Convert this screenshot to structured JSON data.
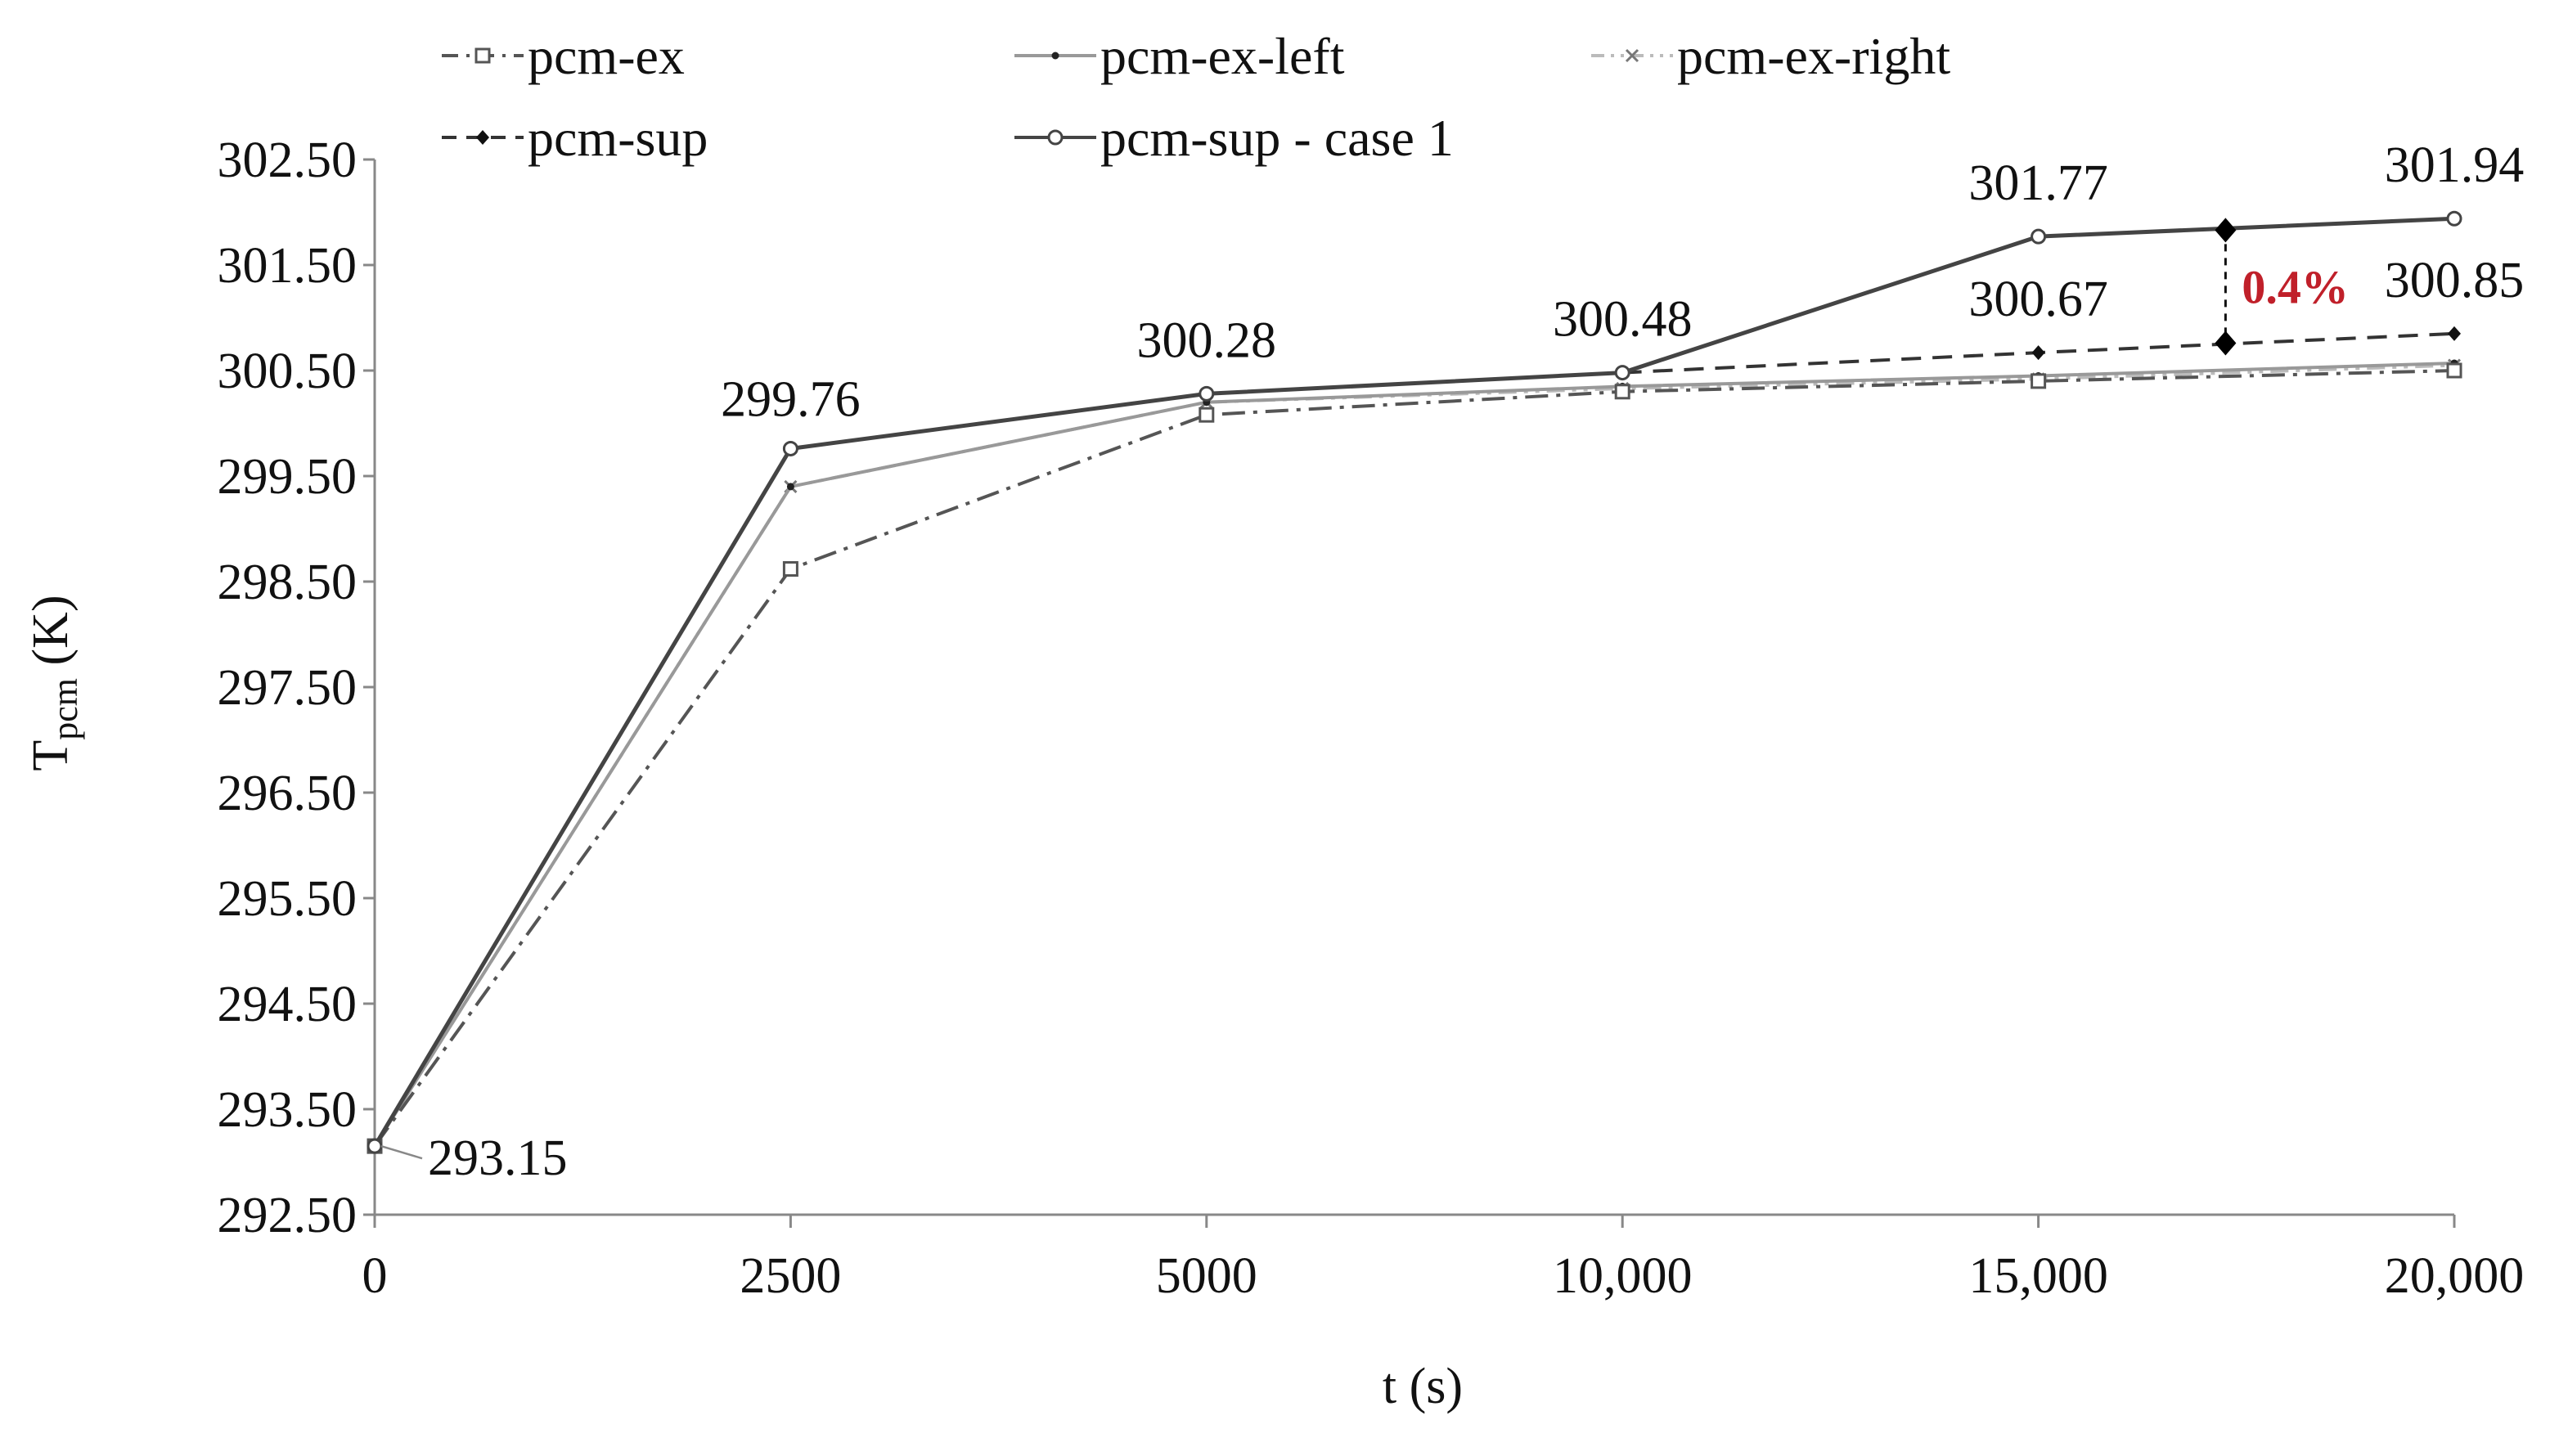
{
  "chart_data": {
    "type": "line",
    "categories": [
      "0",
      "2500",
      "5000",
      "10,000",
      "15,000",
      "20,000"
    ],
    "ylabel_main": "T",
    "ylabel_sub": "pcm",
    "ylabel_unit": "(K)",
    "xlabel": "t (s)",
    "ylim": [
      292.5,
      302.5
    ],
    "yticks": [
      "292.50",
      "293.50",
      "294.50",
      "295.50",
      "296.50",
      "297.50",
      "298.50",
      "299.50",
      "300.50",
      "301.50",
      "302.50"
    ],
    "grid": false,
    "legend_position": "top",
    "series": [
      {
        "name": "pcm-ex",
        "values": [
          293.15,
          298.62,
          300.08,
          300.3,
          300.4,
          300.5
        ],
        "color": "#555555",
        "dash": "dashdot",
        "marker": "square"
      },
      {
        "name": "pcm-ex-left",
        "values": [
          293.15,
          299.4,
          300.2,
          300.35,
          300.45,
          300.57
        ],
        "color": "#999999",
        "dash": "solid",
        "marker": "dot"
      },
      {
        "name": "pcm-ex-right",
        "values": [
          293.15,
          299.4,
          300.2,
          300.33,
          300.42,
          300.55
        ],
        "color": "#bbbbbb",
        "dash": "dashdotdot",
        "marker": "x"
      },
      {
        "name": "pcm-sup",
        "values": [
          293.15,
          299.76,
          300.28,
          300.48,
          300.67,
          300.85
        ],
        "color": "#333333",
        "dash": "dashed",
        "marker": "diamond"
      },
      {
        "name": "pcm-sup - case 1",
        "values": [
          293.15,
          299.76,
          300.28,
          300.48,
          301.77,
          301.94
        ],
        "color": "#444444",
        "dash": "solid",
        "marker": "circle"
      }
    ],
    "data_labels": [
      {
        "text": "293.15",
        "index": 0,
        "value": 293.15
      },
      {
        "text": "299.76",
        "index": 1,
        "value": 299.76
      },
      {
        "text": "300.28",
        "index": 2,
        "value": 300.28
      },
      {
        "text": "300.48",
        "index": 3,
        "value": 300.48
      },
      {
        "text": "301.77",
        "index": 4,
        "value": 301.77
      },
      {
        "text": "300.67",
        "index": 4,
        "value": 300.67
      },
      {
        "text": "301.94",
        "index": 5,
        "value": 301.94
      },
      {
        "text": "300.85",
        "index": 5,
        "value": 300.85
      }
    ],
    "annotation": {
      "text": "0.4%",
      "color": "#c0202a",
      "x_index": 4.45,
      "y_top": 301.83,
      "y_bottom": 300.76
    }
  }
}
